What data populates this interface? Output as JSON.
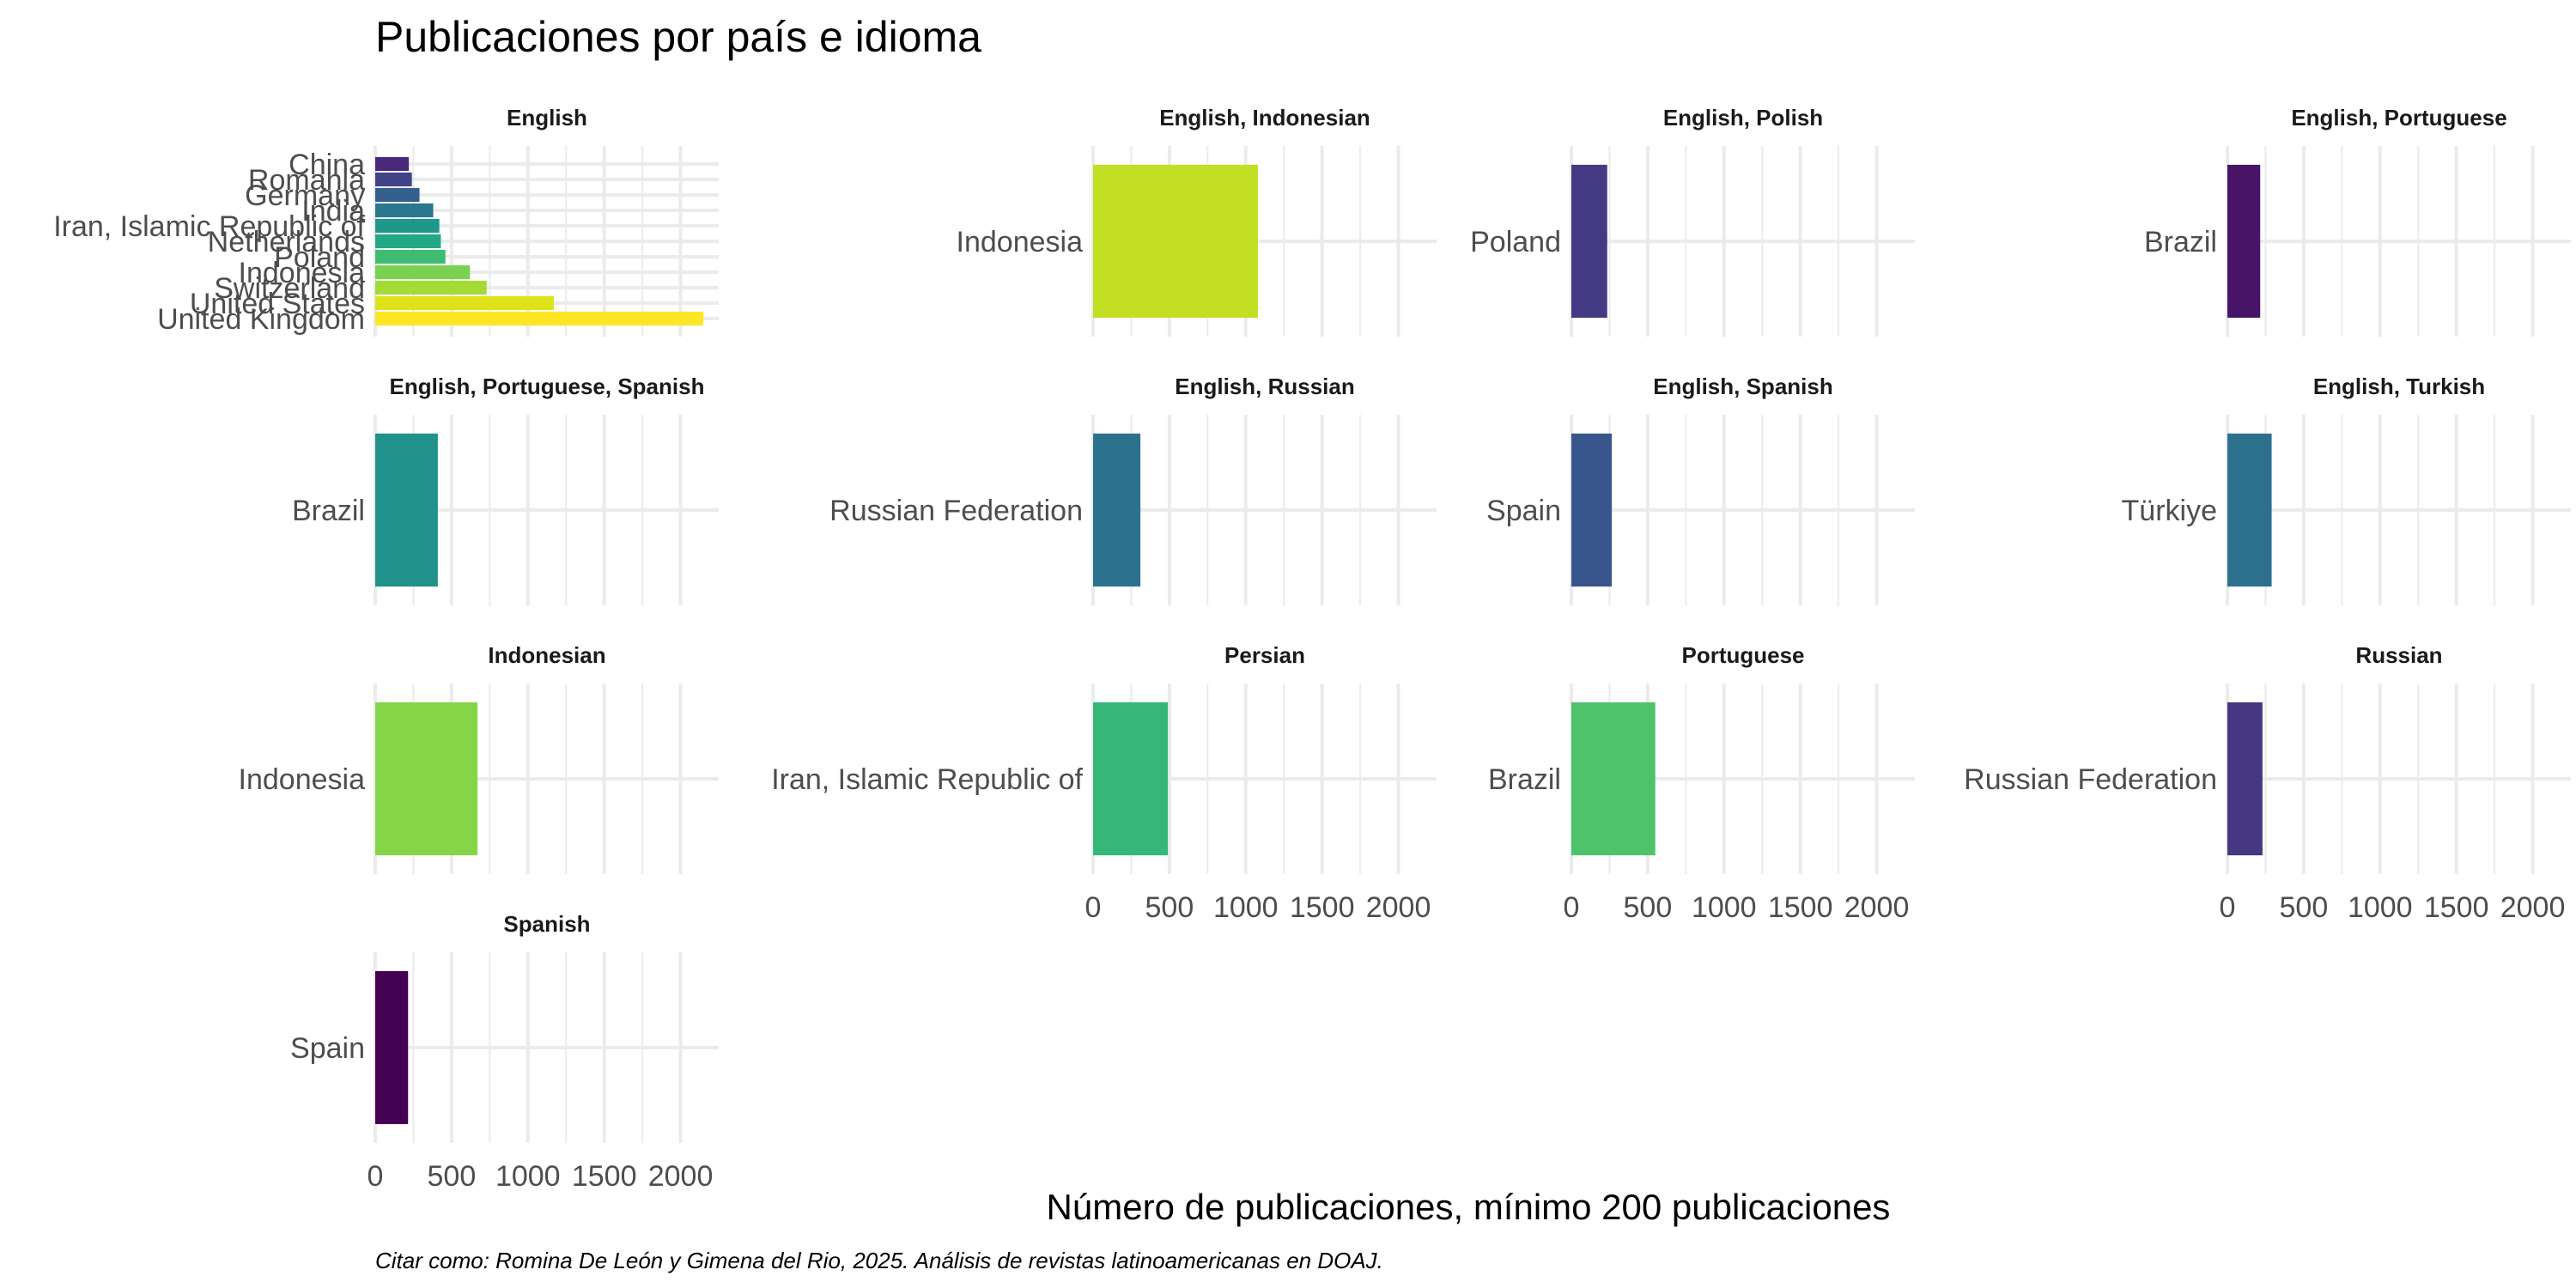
{
  "chart_data": {
    "type": "bar",
    "orientation": "horizontal",
    "facet_layout": "wrap",
    "title": "Publicaciones por país e idioma",
    "xlabel": "Número de publicaciones, mínimo 200 publicaciones",
    "ylabel": "",
    "caption": "Citar como: Romina De León y Gimena del Rio, 2025. Análisis de revistas latinoamericanas en DOAJ.",
    "xlim": [
      0,
      2250
    ],
    "x_ticks": [
      0,
      500,
      1000,
      1500,
      2000
    ],
    "x_tick_labels": [
      "0",
      "500",
      "1000",
      "1500",
      "2000"
    ],
    "grid": true,
    "legend": "none",
    "facets": [
      {
        "name": "English",
        "bars": [
          {
            "category": "United Kingdom",
            "value": 2150,
            "color": "#fde725"
          },
          {
            "category": "United States",
            "value": 1170,
            "color": "#dde318"
          },
          {
            "category": "Switzerland",
            "value": 730,
            "color": "#a5db36"
          },
          {
            "category": "Indonesia",
            "value": 620,
            "color": "#7ad151"
          },
          {
            "category": "Poland",
            "value": 460,
            "color": "#3fbc73"
          },
          {
            "category": "Netherlands",
            "value": 430,
            "color": "#22a884"
          },
          {
            "category": "Iran, Islamic Republic of",
            "value": 420,
            "color": "#1f988b"
          },
          {
            "category": "India",
            "value": 380,
            "color": "#2a788e"
          },
          {
            "category": "Germany",
            "value": 290,
            "color": "#355f8d"
          },
          {
            "category": "Romania",
            "value": 240,
            "color": "#414487"
          },
          {
            "category": "China",
            "value": 220,
            "color": "#482878"
          }
        ]
      },
      {
        "name": "English, Indonesian",
        "bars": [
          {
            "category": "Indonesia",
            "value": 1080,
            "color": "#c2df23"
          }
        ]
      },
      {
        "name": "English, Polish",
        "bars": [
          {
            "category": "Poland",
            "value": 235,
            "color": "#443a83"
          }
        ]
      },
      {
        "name": "English, Portuguese",
        "bars": [
          {
            "category": "Brazil",
            "value": 215,
            "color": "#481467"
          }
        ]
      },
      {
        "name": "English, Portuguese, Spanish",
        "bars": [
          {
            "category": "Brazil",
            "value": 410,
            "color": "#21918c"
          }
        ]
      },
      {
        "name": "English, Russian",
        "bars": [
          {
            "category": "Russian Federation",
            "value": 310,
            "color": "#2c728e"
          }
        ]
      },
      {
        "name": "English, Spanish",
        "bars": [
          {
            "category": "Spain",
            "value": 265,
            "color": "#39568c"
          }
        ]
      },
      {
        "name": "English, Turkish",
        "bars": [
          {
            "category": "Türkiye",
            "value": 290,
            "color": "#2d708e"
          }
        ]
      },
      {
        "name": "Indonesian",
        "bars": [
          {
            "category": "Indonesia",
            "value": 670,
            "color": "#86d549"
          }
        ]
      },
      {
        "name": "Persian",
        "bars": [
          {
            "category": "Iran, Islamic Republic of",
            "value": 490,
            "color": "#35b779"
          }
        ]
      },
      {
        "name": "Portuguese",
        "bars": [
          {
            "category": "Brazil",
            "value": 550,
            "color": "#4ec36b"
          }
        ]
      },
      {
        "name": "Russian",
        "bars": [
          {
            "category": "Russian Federation",
            "value": 230,
            "color": "#453781"
          }
        ]
      },
      {
        "name": "Spanish",
        "bars": [
          {
            "category": "Spain",
            "value": 215,
            "color": "#440154"
          }
        ]
      }
    ]
  }
}
